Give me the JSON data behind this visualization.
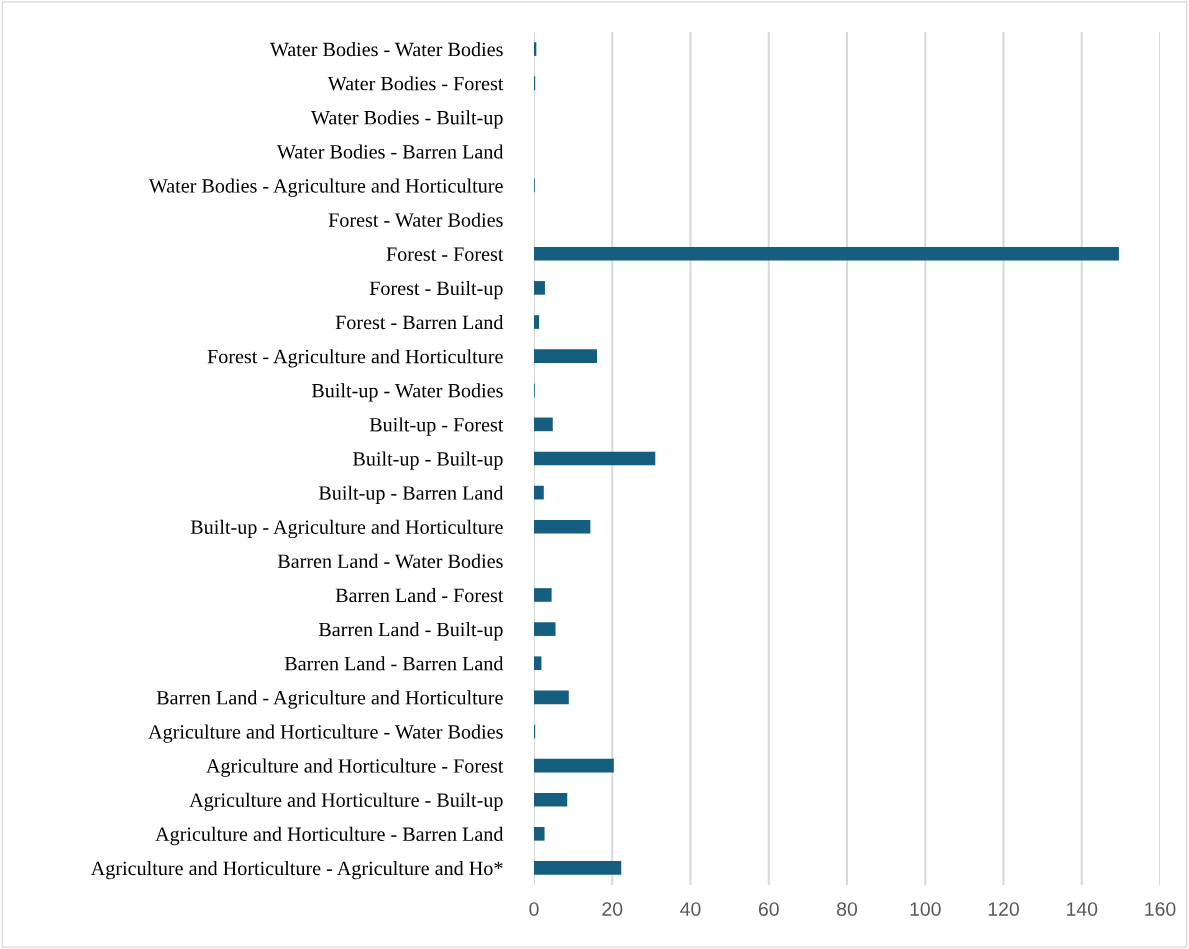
{
  "chart_data": {
    "type": "bar",
    "orientation": "horizontal",
    "categories": [
      "Water Bodies - Water Bodies",
      "Water Bodies - Forest",
      "Water Bodies - Built-up",
      "Water Bodies - Barren Land",
      "Water Bodies - Agriculture and Horticulture",
      "Forest - Water Bodies",
      "Forest - Forest",
      "Forest - Built-up",
      "Forest - Barren Land",
      "Forest - Agriculture and Horticulture",
      "Built-up - Water Bodies",
      "Built-up - Forest",
      "Built-up - Built-up",
      "Built-up - Barren Land",
      "Built-up - Agriculture and Horticulture",
      "Barren Land - Water Bodies",
      "Barren Land - Forest",
      "Barren Land - Built-up",
      "Barren Land - Barren Land",
      "Barren Land - Agriculture and Horticulture",
      "Agriculture and Horticulture - Water Bodies",
      "Agriculture and Horticulture - Forest",
      "Agriculture and Horticulture - Built-up",
      "Agriculture and Horticulture - Barren Land",
      "Agriculture and Horticulture - Agriculture and Ho*"
    ],
    "values": [
      0.6,
      0.3,
      0,
      0,
      0.2,
      0,
      149.5,
      2.8,
      1.3,
      16.1,
      0.2,
      4.8,
      31,
      2.5,
      14.4,
      0,
      4.5,
      5.5,
      1.9,
      8.9,
      0.3,
      20.4,
      8.5,
      2.7,
      22.3
    ],
    "color": "#165e80",
    "xlim": [
      0,
      160
    ],
    "xticks": [
      0,
      20,
      40,
      60,
      80,
      100,
      120,
      140,
      160
    ],
    "grid": "x",
    "legend": false
  }
}
